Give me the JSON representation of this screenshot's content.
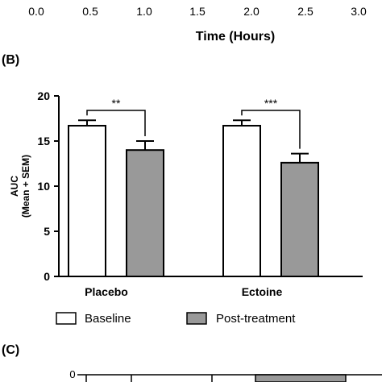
{
  "top_panel": {
    "x_ticks": [
      "0.0",
      "0.5",
      "1.0",
      "1.5",
      "2.0",
      "2.5",
      "3.0"
    ],
    "xlabel": "Time (Hours)"
  },
  "panel_b": {
    "label": "(B)"
  },
  "panel_c": {
    "label": "(C)",
    "y_tick": "0"
  },
  "colors": {
    "baseline": "#ffffff",
    "post_treatment": "#999999",
    "axis": "#000000"
  },
  "chart_data": {
    "type": "bar",
    "categories": [
      "Placebo",
      "Ectoine"
    ],
    "series": [
      {
        "name": "Baseline",
        "values": [
          16.7,
          16.7
        ],
        "errors": [
          0.6,
          0.6
        ],
        "color": "#ffffff"
      },
      {
        "name": "Post-treatment",
        "values": [
          14.0,
          12.6
        ],
        "errors": [
          1.0,
          1.0
        ],
        "color": "#999999"
      }
    ],
    "ylabel_line1": "AUC",
    "ylabel_line2": "(Mean + SEM)",
    "ylim": [
      0,
      20
    ],
    "y_ticks": [
      "0",
      "5",
      "10",
      "15",
      "20"
    ],
    "significance": [
      "**",
      "***"
    ],
    "legend_position": "bottom",
    "grid": false
  }
}
